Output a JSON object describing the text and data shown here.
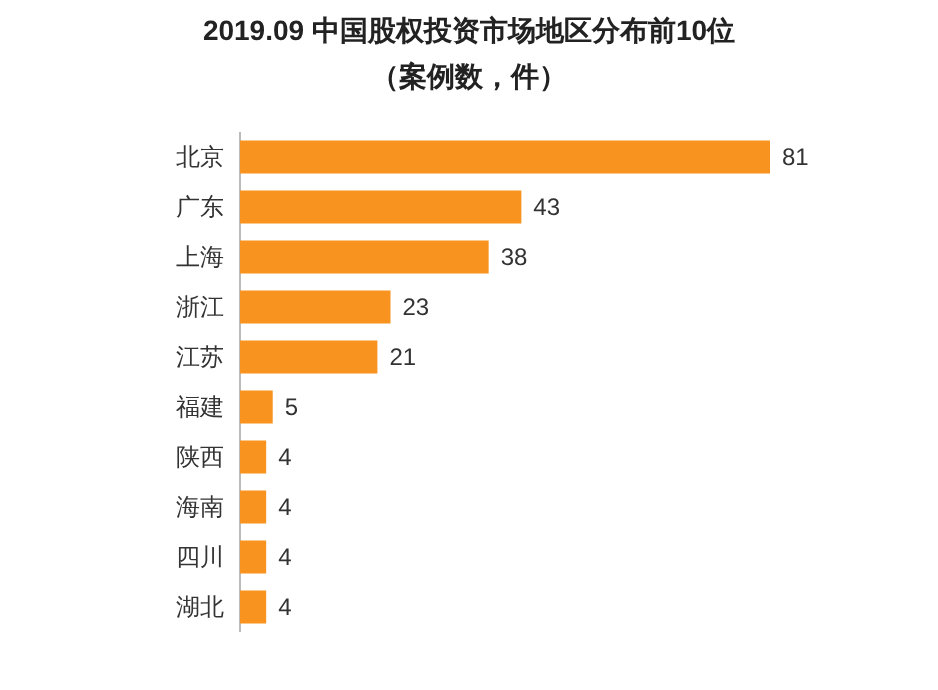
{
  "chart_data": {
    "type": "bar",
    "orientation": "horizontal",
    "title": "2019.09 中国股权投资市场地区分布前10位",
    "subtitle": "（案例数，件）",
    "categories": [
      "北京",
      "广东",
      "上海",
      "浙江",
      "江苏",
      "福建",
      "陕西",
      "海南",
      "四川",
      "湖北"
    ],
    "values": [
      81,
      43,
      38,
      23,
      21,
      5,
      4,
      4,
      4,
      4
    ],
    "color": "#f7931e",
    "data_labels": true
  }
}
